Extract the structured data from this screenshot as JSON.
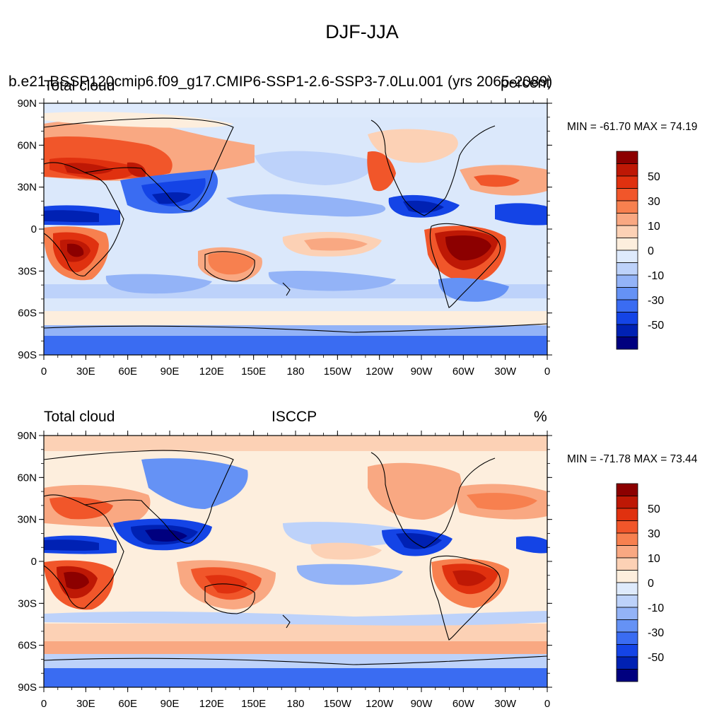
{
  "title": "DJF-JJA",
  "colors": {
    "scale": [
      "#00007f",
      "#0021b3",
      "#1444e6",
      "#3a6cf2",
      "#6592f5",
      "#93b3f7",
      "#bdd2fa",
      "#deeafc",
      "#fdeedd",
      "#fcd1b5",
      "#f9a882",
      "#f7804f",
      "#f1562a",
      "#e0310f",
      "#be1805",
      "#8c0000"
    ],
    "ocean_bg": "#dbe8fb",
    "coast": "#000000"
  },
  "colorbar": {
    "labels": [
      "50",
      "30",
      "10",
      "0",
      "-10",
      "-30",
      "-50"
    ]
  },
  "axes": {
    "lat_labels": [
      "90N",
      "60N",
      "30N",
      "0",
      "30S",
      "60S",
      "90S"
    ],
    "lon_labels": [
      "0",
      "30E",
      "60E",
      "90E",
      "120E",
      "150E",
      "180",
      "150W",
      "120W",
      "90W",
      "60W",
      "30W",
      "0"
    ]
  },
  "panels": [
    {
      "left_title": "Total cloud",
      "center_title": "b.e21.BSSP120cmip6.f09_g17.CMIP6-SSP1-2.6-SSP3-7.0Lu.001 (yrs 2065-2089)",
      "right_title": "percent",
      "stats": "MIN = -61.70 MAX =  74.19"
    },
    {
      "left_title": "Total cloud",
      "center_title": "ISCCP",
      "right_title": "%",
      "stats": "MIN = -71.78 MAX =  73.44"
    }
  ]
}
